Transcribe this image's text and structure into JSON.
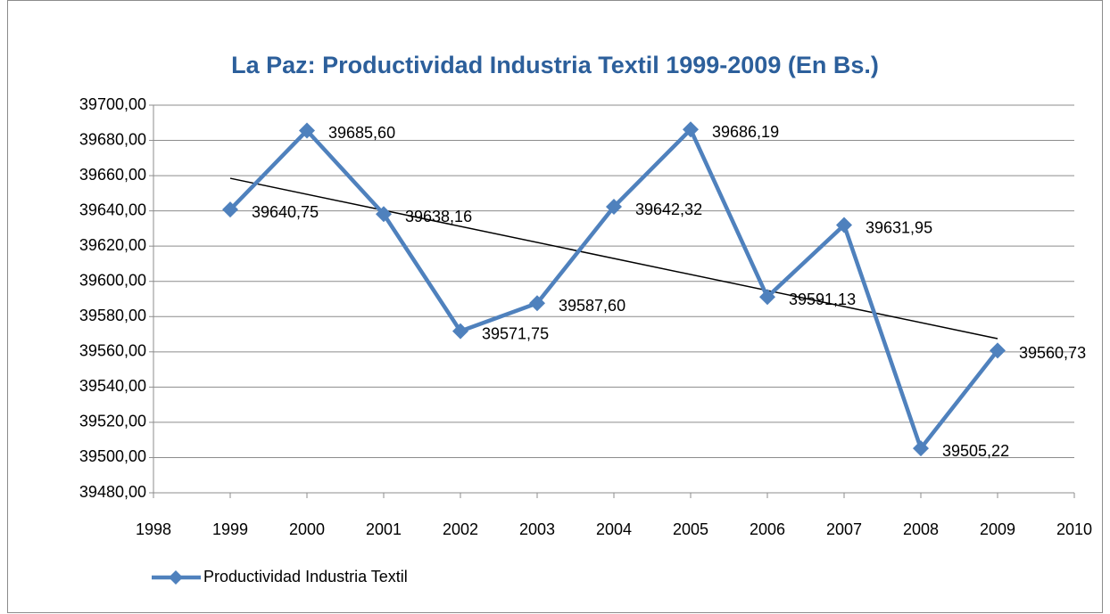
{
  "chart_data": {
    "type": "line",
    "title": "La Paz: Productividad Industria Textil 1999-2009 (En Bs.)",
    "x": [
      1999,
      2000,
      2001,
      2002,
      2003,
      2004,
      2005,
      2006,
      2007,
      2008,
      2009
    ],
    "series": [
      {
        "name": "Productividad Industria Textil",
        "color": "#4f81bd",
        "values": [
          39640.75,
          39685.6,
          39638.16,
          39571.75,
          39587.6,
          39642.32,
          39686.19,
          39591.13,
          39631.95,
          39505.22,
          39560.73
        ],
        "value_labels": [
          "39640,75",
          "39685,60",
          "39638,16",
          "39571,75",
          "39587,60",
          "39642,32",
          "39686,19",
          "39591,13",
          "39631,95",
          "39505,22",
          "39560,73"
        ]
      }
    ],
    "trendline": {
      "x": [
        1999,
        2009
      ],
      "values": [
        39658.5,
        39567.5
      ],
      "color": "#000000"
    },
    "xlim": [
      1998,
      2010
    ],
    "xticks": [
      1998,
      1999,
      2000,
      2001,
      2002,
      2003,
      2004,
      2005,
      2006,
      2007,
      2008,
      2009,
      2010
    ],
    "ylim": [
      39480,
      39700
    ],
    "yticks": [
      {
        "value": 39480,
        "label": "39480,00"
      },
      {
        "value": 39500,
        "label": "39500,00"
      },
      {
        "value": 39520,
        "label": "39520,00"
      },
      {
        "value": 39540,
        "label": "39540,00"
      },
      {
        "value": 39560,
        "label": "39560,00"
      },
      {
        "value": 39580,
        "label": "39580,00"
      },
      {
        "value": 39600,
        "label": "39600,00"
      },
      {
        "value": 39620,
        "label": "39620,00"
      },
      {
        "value": 39640,
        "label": "39640,00"
      },
      {
        "value": 39660,
        "label": "39660,00"
      },
      {
        "value": 39680,
        "label": "39680,00"
      },
      {
        "value": 39700,
        "label": "39700,00"
      }
    ],
    "grid": true,
    "legend": "bottom-left"
  }
}
